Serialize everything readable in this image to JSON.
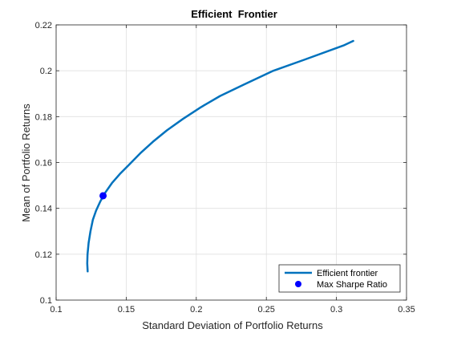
{
  "chart_data": {
    "type": "line",
    "title": "Efficient  Frontier",
    "xlabel": "Standard Deviation of Portfolio Returns",
    "ylabel": "Mean of Portfolio Returns",
    "xlim": [
      0.1,
      0.35
    ],
    "ylim": [
      0.1,
      0.22
    ],
    "xticks": [
      0.1,
      0.15,
      0.2,
      0.25,
      0.3,
      0.35
    ],
    "xtick_labels": [
      "0.1",
      "0.15",
      "0.2",
      "0.25",
      "0.3",
      "0.35"
    ],
    "yticks": [
      0.1,
      0.12,
      0.14,
      0.16,
      0.18,
      0.2,
      0.22
    ],
    "ytick_labels": [
      "0.1",
      "0.12",
      "0.14",
      "0.16",
      "0.18",
      "0.2",
      "0.22"
    ],
    "grid": true,
    "legend_position": "bottom-right",
    "series": [
      {
        "name": "Efficient frontier",
        "kind": "line",
        "color": "#0072BD",
        "x": [
          0.1225,
          0.1222,
          0.1224,
          0.1232,
          0.1245,
          0.1262,
          0.1285,
          0.1315,
          0.1352,
          0.1398,
          0.1455,
          0.152,
          0.16,
          0.169,
          0.179,
          0.1905,
          0.203,
          0.217,
          0.234,
          0.255,
          0.278,
          0.305,
          0.312
        ],
        "y": [
          0.1125,
          0.116,
          0.12,
          0.125,
          0.13,
          0.135,
          0.139,
          0.143,
          0.147,
          0.151,
          0.155,
          0.159,
          0.164,
          0.169,
          0.174,
          0.179,
          0.184,
          0.189,
          0.194,
          0.2,
          0.205,
          0.211,
          0.213
        ]
      },
      {
        "name": "Max Sharpe Ratio",
        "kind": "scatter",
        "color": "#0000FF",
        "x": [
          0.1335
        ],
        "y": [
          0.1455
        ]
      }
    ]
  }
}
